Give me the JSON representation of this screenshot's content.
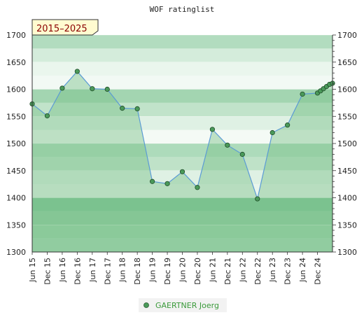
{
  "chart_data": {
    "type": "area",
    "title": "WOF ratinglist",
    "badge": "2015–2025",
    "ylim": [
      1300,
      1700
    ],
    "y_ticks": [
      1300,
      1350,
      1400,
      1450,
      1500,
      1550,
      1600,
      1650,
      1700
    ],
    "x_tick_labels": [
      "Jun 15",
      "Dec 15",
      "Jun 16",
      "Dec 16",
      "Jun 17",
      "Dec 17",
      "Jun 18",
      "Dec 18",
      "Jun 19",
      "Dec 19",
      "Jun 20",
      "Dec 20",
      "Jun 21",
      "Dec 21",
      "Jun 22",
      "Dec 22",
      "Jun 23",
      "Dec 23",
      "Jun 24",
      "Dec 24"
    ],
    "grid": true,
    "legend_position": "bottom",
    "colors": {
      "line": "#5b9bd5",
      "marker": "#4a9a5a",
      "area": "#79c08a",
      "band_dark": "#7dc394",
      "band_light": "#f0f8f2"
    },
    "series": [
      {
        "name": "GAERTNER Joerg",
        "points": [
          {
            "x": 0.0,
            "y": 1573
          },
          {
            "x": 1.0,
            "y": 1551
          },
          {
            "x": 2.0,
            "y": 1602
          },
          {
            "x": 3.0,
            "y": 1633
          },
          {
            "x": 4.0,
            "y": 1601
          },
          {
            "x": 5.0,
            "y": 1600
          },
          {
            "x": 6.0,
            "y": 1565
          },
          {
            "x": 7.0,
            "y": 1564
          },
          {
            "x": 8.0,
            "y": 1430
          },
          {
            "x": 9.0,
            "y": 1426
          },
          {
            "x": 10.0,
            "y": 1448
          },
          {
            "x": 11.0,
            "y": 1419
          },
          {
            "x": 12.0,
            "y": 1526
          },
          {
            "x": 13.0,
            "y": 1497
          },
          {
            "x": 14.0,
            "y": 1480
          },
          {
            "x": 15.0,
            "y": 1398
          },
          {
            "x": 16.0,
            "y": 1520
          },
          {
            "x": 17.0,
            "y": 1534
          },
          {
            "x": 18.0,
            "y": 1591
          },
          {
            "x": 19.0,
            "y": 1593
          },
          {
            "x": 19.2,
            "y": 1597
          },
          {
            "x": 19.4,
            "y": 1601
          },
          {
            "x": 19.6,
            "y": 1605
          },
          {
            "x": 19.8,
            "y": 1609
          },
          {
            "x": 20.0,
            "y": 1611
          }
        ]
      }
    ]
  }
}
